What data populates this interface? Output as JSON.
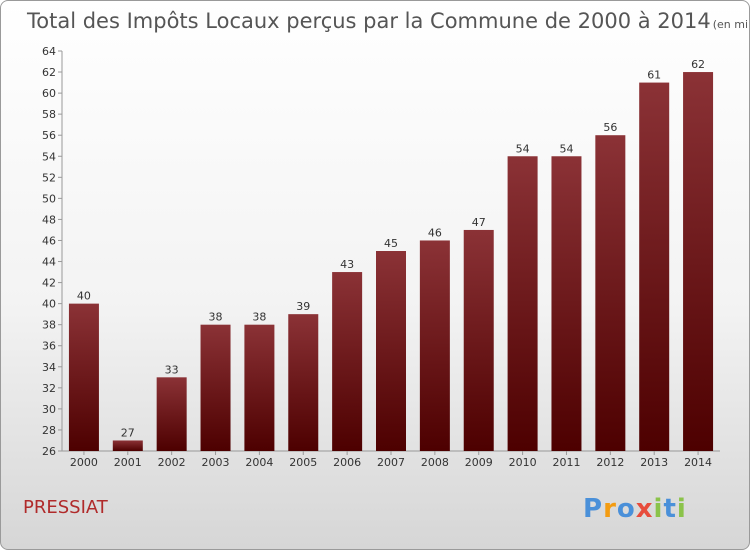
{
  "chart_data": {
    "type": "bar",
    "title": "Total des Impôts Locaux perçus par la Commune de 2000 à 2014",
    "unit_note": "(en milliers d'€)",
    "categories": [
      "2000",
      "2001",
      "2002",
      "2003",
      "2004",
      "2005",
      "2006",
      "2007",
      "2008",
      "2009",
      "2010",
      "2011",
      "2012",
      "2013",
      "2014"
    ],
    "values": [
      40,
      27,
      33,
      38,
      38,
      39,
      43,
      45,
      46,
      47,
      54,
      54,
      56,
      61,
      62
    ],
    "ylim": [
      26,
      64
    ],
    "yticks": [
      "26",
      "28",
      "30",
      "32",
      "34",
      "36",
      "38",
      "40",
      "42",
      "44",
      "46",
      "48",
      "50",
      "52",
      "54",
      "56",
      "58",
      "60",
      "62",
      "64"
    ],
    "xlabel": "",
    "ylabel": "",
    "grid": false,
    "bar_color_top": "#8b3236",
    "bar_color_bottom": "#4d0000"
  },
  "footer": {
    "commune_name": "PRESSIAT",
    "logo_letters": [
      {
        "char": "P",
        "color": "#4a90d9"
      },
      {
        "char": "r",
        "color": "#f39c12"
      },
      {
        "char": "o",
        "color": "#4a90d9"
      },
      {
        "char": "x",
        "color": "#e74c3c"
      },
      {
        "char": "i",
        "color": "#8bc34a"
      },
      {
        "char": "t",
        "color": "#4a90d9"
      },
      {
        "char": "i",
        "color": "#8bc34a"
      }
    ]
  }
}
